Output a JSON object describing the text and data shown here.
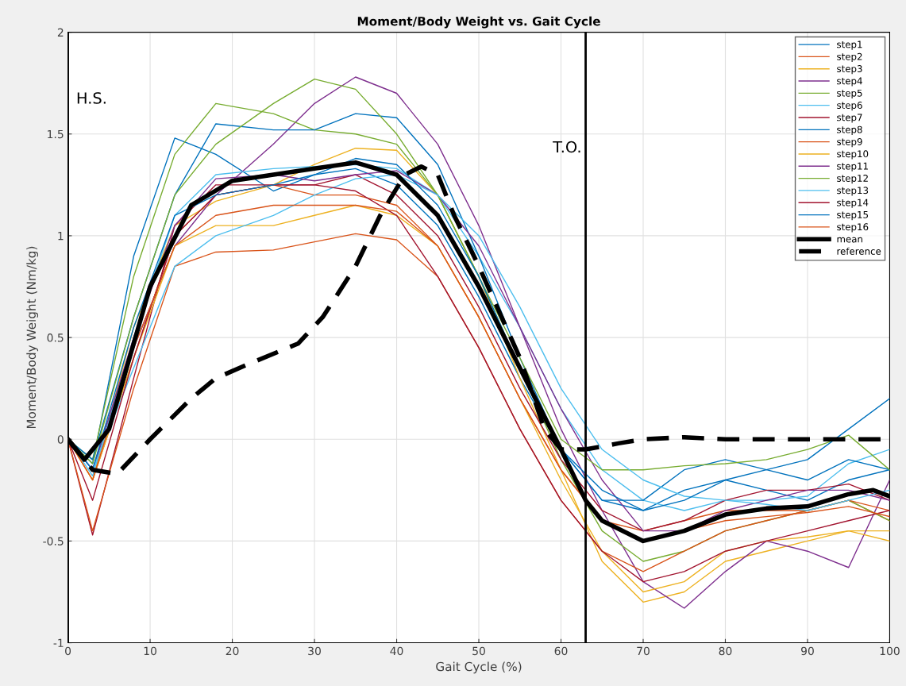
{
  "chart_data": {
    "type": "line",
    "title": "Moment/Body Weight vs. Gait Cycle",
    "xlabel": "Gait Cycle (%)",
    "ylabel": "Moment/Body Weight (Nm/kg)",
    "x": [
      0,
      3,
      8,
      13,
      18,
      25,
      30,
      35,
      40,
      45,
      50,
      55,
      60,
      65,
      70,
      75,
      80,
      85,
      90,
      95,
      100
    ],
    "xlim": [
      0,
      100
    ],
    "xticks": [
      0,
      10,
      20,
      30,
      40,
      50,
      60,
      70,
      80,
      90,
      100
    ],
    "ylim": [
      -1,
      2
    ],
    "yticks": [
      -1,
      -0.5,
      0,
      0.5,
      1,
      1.5,
      2
    ],
    "grid": true,
    "legend": "top right",
    "marker": "none",
    "ref_lines": [
      {
        "axis": "x",
        "value": 0,
        "label": "H.S.",
        "color": "#000000"
      },
      {
        "axis": "x",
        "value": 63,
        "label": "T.O.",
        "color": "#000000"
      }
    ],
    "series": [
      {
        "name": "step1",
        "color": "#0072bd",
        "values": [
          0,
          -0.12,
          0.9,
          1.48,
          1.4,
          1.22,
          1.3,
          1.33,
          1.25,
          1.05,
          0.7,
          0.3,
          -0.05,
          -0.3,
          -0.35,
          -0.25,
          -0.2,
          -0.25,
          -0.3,
          -0.2,
          -0.15
        ]
      },
      {
        "name": "step2",
        "color": "#d95319",
        "values": [
          0,
          -0.2,
          0.4,
          1.0,
          1.2,
          1.25,
          1.2,
          1.2,
          1.15,
          0.95,
          0.6,
          0.2,
          -0.15,
          -0.4,
          -0.45,
          -0.4,
          -0.35,
          -0.35,
          -0.35,
          -0.3,
          -0.4
        ]
      },
      {
        "name": "step3",
        "color": "#edb120",
        "values": [
          0,
          -0.2,
          0.55,
          1.05,
          1.17,
          1.25,
          1.35,
          1.43,
          1.42,
          1.2,
          0.8,
          0.3,
          -0.15,
          -0.6,
          -0.8,
          -0.75,
          -0.6,
          -0.55,
          -0.5,
          -0.45,
          -0.45
        ]
      },
      {
        "name": "step4",
        "color": "#7e2f8e",
        "values": [
          0,
          -0.15,
          0.45,
          0.95,
          1.2,
          1.45,
          1.65,
          1.78,
          1.7,
          1.45,
          1.05,
          0.55,
          0.05,
          -0.35,
          -0.7,
          -0.83,
          -0.65,
          -0.5,
          -0.55,
          -0.63,
          -0.2
        ]
      },
      {
        "name": "step5",
        "color": "#77ac30",
        "values": [
          0,
          -0.1,
          0.8,
          1.4,
          1.65,
          1.6,
          1.52,
          1.5,
          1.45,
          1.2,
          0.8,
          0.35,
          -0.1,
          -0.45,
          -0.6,
          -0.55,
          -0.45,
          -0.4,
          -0.35,
          -0.3,
          -0.4
        ]
      },
      {
        "name": "step6",
        "color": "#4dbeee",
        "values": [
          0,
          -0.18,
          0.5,
          1.1,
          1.3,
          1.33,
          1.34,
          1.35,
          1.33,
          1.2,
          0.9,
          0.55,
          0.15,
          -0.15,
          -0.3,
          -0.35,
          -0.3,
          -0.3,
          -0.28,
          -0.12,
          -0.05
        ]
      },
      {
        "name": "step7",
        "color": "#a2142f",
        "values": [
          0,
          -0.47,
          0.3,
          1.05,
          1.25,
          1.25,
          1.25,
          1.3,
          1.2,
          1.0,
          0.65,
          0.25,
          -0.1,
          -0.35,
          -0.45,
          -0.4,
          -0.3,
          -0.25,
          -0.25,
          -0.22,
          -0.3
        ]
      },
      {
        "name": "step8",
        "color": "#0072bd",
        "values": [
          0,
          -0.1,
          0.6,
          1.2,
          1.55,
          1.52,
          1.52,
          1.6,
          1.58,
          1.35,
          0.9,
          0.4,
          -0.05,
          -0.3,
          -0.3,
          -0.15,
          -0.1,
          -0.15,
          -0.2,
          -0.1,
          -0.15
        ]
      },
      {
        "name": "step9",
        "color": "#d95319",
        "values": [
          0,
          -0.45,
          0.25,
          0.85,
          0.92,
          0.93,
          0.97,
          1.01,
          0.98,
          0.8,
          0.45,
          0.05,
          -0.3,
          -0.55,
          -0.65,
          -0.55,
          -0.45,
          -0.4,
          -0.35,
          -0.3,
          -0.35
        ]
      },
      {
        "name": "step10",
        "color": "#edb120",
        "values": [
          0,
          -0.2,
          0.4,
          0.95,
          1.05,
          1.05,
          1.1,
          1.15,
          1.1,
          0.95,
          0.6,
          0.2,
          -0.2,
          -0.55,
          -0.75,
          -0.7,
          -0.55,
          -0.5,
          -0.48,
          -0.45,
          -0.5
        ]
      },
      {
        "name": "step11",
        "color": "#7e2f8e",
        "values": [
          0,
          -0.15,
          0.5,
          1.05,
          1.28,
          1.3,
          1.27,
          1.3,
          1.32,
          1.2,
          0.95,
          0.55,
          0.15,
          -0.2,
          -0.45,
          -0.45,
          -0.35,
          -0.3,
          -0.25,
          -0.25,
          -0.3
        ]
      },
      {
        "name": "step12",
        "color": "#77ac30",
        "values": [
          0,
          -0.12,
          0.6,
          1.2,
          1.45,
          1.65,
          1.77,
          1.72,
          1.5,
          1.2,
          0.8,
          0.4,
          0.0,
          -0.15,
          -0.15,
          -0.13,
          -0.12,
          -0.1,
          -0.05,
          0.02,
          -0.15
        ]
      },
      {
        "name": "step13",
        "color": "#4dbeee",
        "values": [
          0,
          -0.15,
          0.35,
          0.85,
          1.0,
          1.1,
          1.2,
          1.28,
          1.3,
          1.2,
          1.0,
          0.65,
          0.25,
          -0.05,
          -0.2,
          -0.28,
          -0.3,
          -0.32,
          -0.35,
          -0.3,
          -0.25
        ]
      },
      {
        "name": "step14",
        "color": "#a2142f",
        "values": [
          0,
          -0.3,
          0.4,
          1.0,
          1.2,
          1.25,
          1.25,
          1.22,
          1.1,
          0.8,
          0.45,
          0.05,
          -0.3,
          -0.55,
          -0.7,
          -0.65,
          -0.55,
          -0.5,
          -0.45,
          -0.4,
          -0.35
        ]
      },
      {
        "name": "step15",
        "color": "#0072bd",
        "values": [
          0,
          -0.15,
          0.55,
          1.1,
          1.2,
          1.25,
          1.3,
          1.38,
          1.35,
          1.15,
          0.8,
          0.35,
          -0.05,
          -0.25,
          -0.35,
          -0.3,
          -0.2,
          -0.15,
          -0.1,
          0.05,
          0.2
        ]
      },
      {
        "name": "step16",
        "color": "#d95319",
        "values": [
          0,
          -0.2,
          0.45,
          0.95,
          1.1,
          1.15,
          1.15,
          1.15,
          1.12,
          0.95,
          0.6,
          0.2,
          -0.15,
          -0.4,
          -0.5,
          -0.45,
          -0.4,
          -0.38,
          -0.36,
          -0.33,
          -0.38
        ]
      },
      {
        "name": "mean",
        "color": "#000000",
        "line_style": "solid",
        "x": [
          0,
          2,
          5,
          10,
          15,
          20,
          25,
          30,
          35,
          40,
          45,
          50,
          55,
          60,
          63,
          65,
          70,
          75,
          80,
          85,
          90,
          95,
          98,
          100
        ],
        "values": [
          0,
          -0.1,
          0.05,
          0.75,
          1.15,
          1.27,
          1.3,
          1.33,
          1.36,
          1.3,
          1.1,
          0.75,
          0.35,
          -0.05,
          -0.3,
          -0.4,
          -0.5,
          -0.45,
          -0.37,
          -0.34,
          -0.33,
          -0.27,
          -0.25,
          -0.28
        ]
      },
      {
        "name": "reference",
        "color": "#000000",
        "line_style": "dashed",
        "x": [
          0,
          3,
          6,
          10,
          15,
          18,
          22,
          28,
          31,
          35,
          38,
          41,
          43,
          45,
          47,
          50,
          55,
          58,
          60,
          63,
          67,
          70,
          75,
          80,
          90,
          100
        ],
        "values": [
          0,
          -0.15,
          -0.17,
          0,
          0.2,
          0.3,
          0.37,
          0.47,
          0.6,
          0.85,
          1.1,
          1.3,
          1.34,
          1.3,
          1.1,
          0.85,
          0.4,
          0.05,
          -0.05,
          -0.05,
          -0.02,
          0,
          0.01,
          0,
          0,
          0
        ]
      }
    ]
  }
}
